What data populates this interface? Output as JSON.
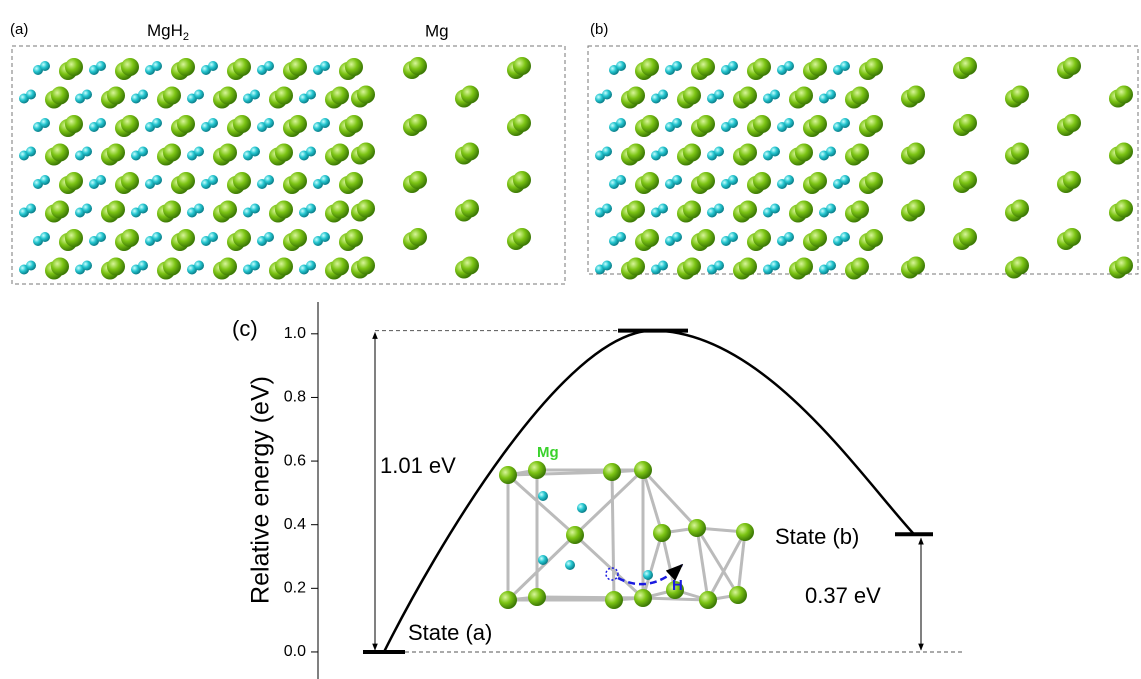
{
  "panels": {
    "a": {
      "label": "(a)",
      "left_title": "MgH",
      "left_sub": "2",
      "right_title": "Mg"
    },
    "b": {
      "label": "(b)"
    }
  },
  "chart_data": {
    "type": "line",
    "panel_label": "(c)",
    "y_label": "Relative energy (eV)",
    "series": [
      {
        "color": "#000000",
        "values": [
          0,
          1.01,
          0.37
        ]
      }
    ],
    "ylim": [
      -0.08,
      1.1
    ],
    "yticks": [
      {
        "value": 0,
        "label": "0.0"
      },
      {
        "value": 0.2,
        "label": "0.2"
      },
      {
        "value": 0.4,
        "label": "0.4"
      },
      {
        "value": 0.6,
        "label": "0.6"
      },
      {
        "value": 0.8,
        "label": "0.8"
      },
      {
        "value": 1.0,
        "label": "1.0"
      }
    ],
    "annotations": {
      "barrier": "1.01 eV",
      "difference": "0.37 eV",
      "state_a": "State (a)",
      "state_b": "State (b)"
    },
    "inset": {
      "mg_label": "Mg",
      "h_label": "H"
    }
  }
}
